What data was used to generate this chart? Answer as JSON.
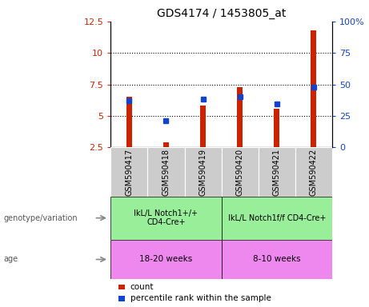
{
  "title": "GDS4174 / 1453805_at",
  "samples": [
    "GSM590417",
    "GSM590418",
    "GSM590419",
    "GSM590420",
    "GSM590421",
    "GSM590422"
  ],
  "count_values": [
    6.5,
    2.9,
    5.8,
    7.3,
    5.6,
    11.8
  ],
  "percentile_values": [
    6.2,
    4.6,
    6.35,
    6.5,
    5.95,
    7.3
  ],
  "left_ylim": [
    2.5,
    12.5
  ],
  "left_yticks": [
    2.5,
    5.0,
    7.5,
    10.0,
    12.5
  ],
  "left_yticklabels": [
    "2.5",
    "5",
    "7.5",
    "10",
    "12.5"
  ],
  "right_ylim": [
    0,
    100
  ],
  "right_yticks": [
    0,
    25,
    50,
    75,
    100
  ],
  "right_yticklabels": [
    "0",
    "25",
    "50",
    "75",
    "100%"
  ],
  "bar_color": "#cc2200",
  "dot_color": "#1144cc",
  "group1_label": "IkL/L Notch1+/+\nCD4-Cre+",
  "group2_label": "IkL/L Notch1f/f CD4-Cre+",
  "age1_label": "18-20 weeks",
  "age2_label": "8-10 weeks",
  "group_bg_color": "#99ee99",
  "age_bg_color": "#ee88ee",
  "sample_bg_color": "#cccccc",
  "legend_count_label": "count",
  "legend_pct_label": "percentile rank within the sample",
  "left_tick_color": "#cc2200",
  "right_tick_color": "#1144cc",
  "genotype_label": "genotype/variation",
  "age_label": "age",
  "bar_width": 0.15
}
